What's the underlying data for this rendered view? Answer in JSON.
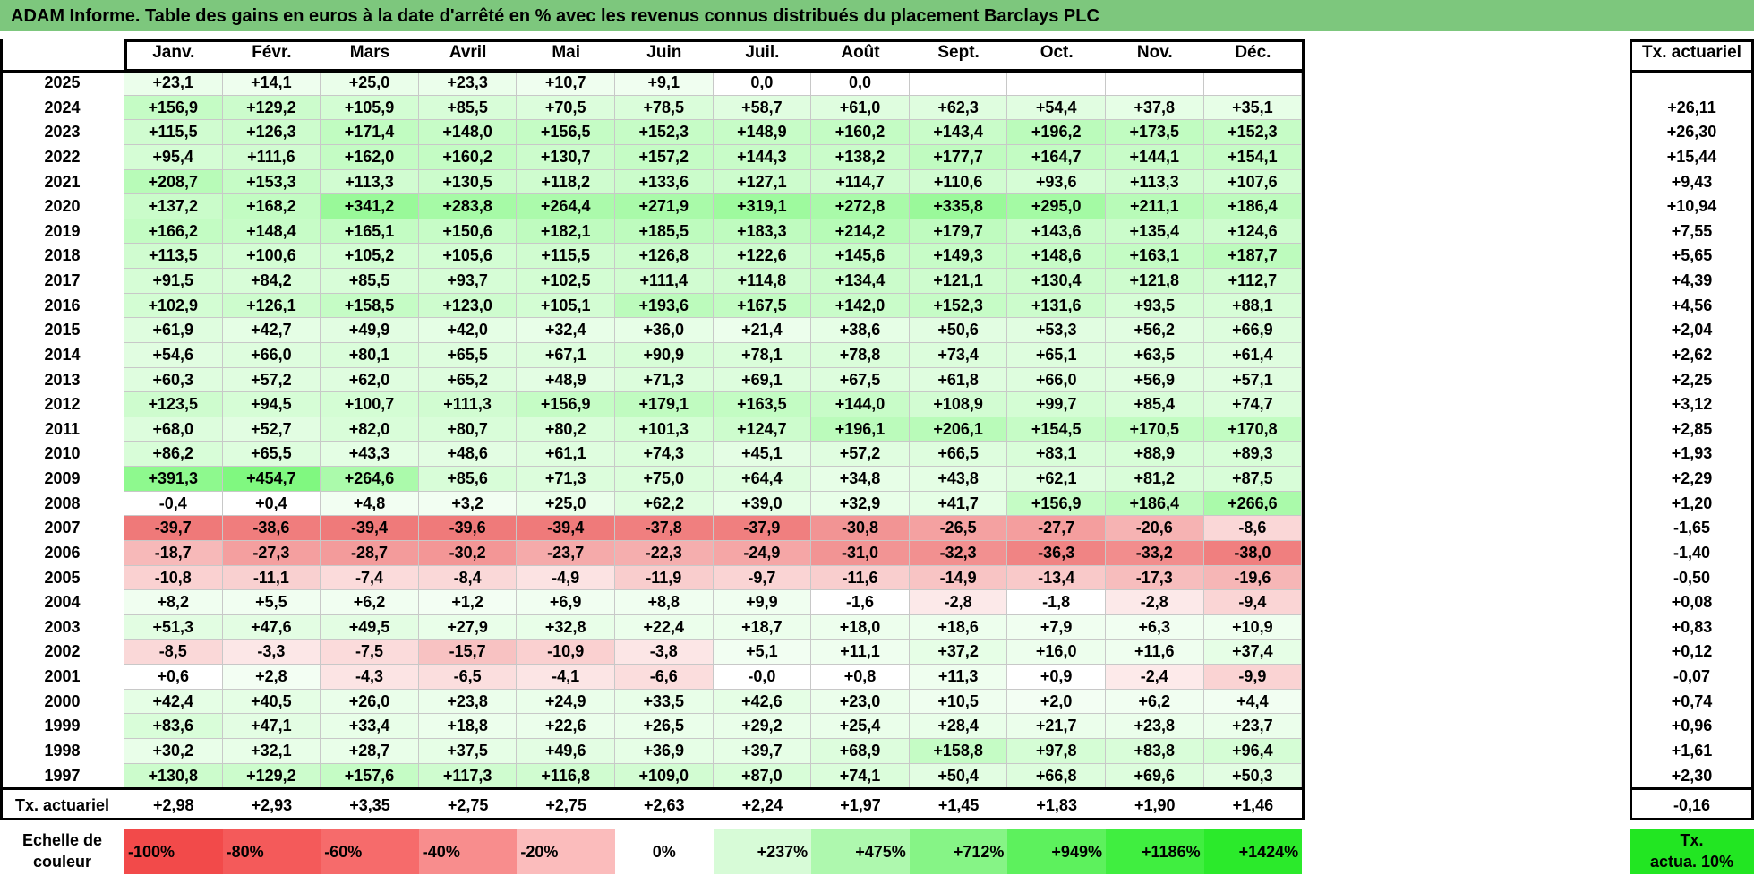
{
  "title": "ADAM Informe. Table des gains en euros à la date d'arrêté en % avec les revenus connus distribués du placement Barclays PLC",
  "months": [
    "Janv.",
    "Févr.",
    "Mars",
    "Avril",
    "Mai",
    "Juin",
    "Juil.",
    "Août",
    "Sept.",
    "Oct.",
    "Nov.",
    "Déc."
  ],
  "rate_header": "Tx. actuariel",
  "rows": [
    {
      "year": "2025",
      "values": [
        "+23,1",
        "+14,1",
        "+25,0",
        "+23,3",
        "+10,7",
        "+9,1",
        "0,0",
        "0,0",
        "",
        "",
        "",
        ""
      ],
      "rate": ""
    },
    {
      "year": "2024",
      "values": [
        "+156,9",
        "+129,2",
        "+105,9",
        "+85,5",
        "+70,5",
        "+78,5",
        "+58,7",
        "+61,0",
        "+62,3",
        "+54,4",
        "+37,8",
        "+35,1"
      ],
      "rate": "+26,11"
    },
    {
      "year": "2023",
      "values": [
        "+115,5",
        "+126,3",
        "+171,4",
        "+148,0",
        "+156,5",
        "+152,3",
        "+148,9",
        "+160,2",
        "+143,4",
        "+196,2",
        "+173,5",
        "+152,3"
      ],
      "rate": "+26,30"
    },
    {
      "year": "2022",
      "values": [
        "+95,4",
        "+111,6",
        "+162,0",
        "+160,2",
        "+130,7",
        "+157,2",
        "+144,3",
        "+138,2",
        "+177,7",
        "+164,7",
        "+144,1",
        "+154,1"
      ],
      "rate": "+15,44"
    },
    {
      "year": "2021",
      "values": [
        "+208,7",
        "+153,3",
        "+113,3",
        "+130,5",
        "+118,2",
        "+133,6",
        "+127,1",
        "+114,7",
        "+110,6",
        "+93,6",
        "+113,3",
        "+107,6"
      ],
      "rate": "+9,43"
    },
    {
      "year": "2020",
      "values": [
        "+137,2",
        "+168,2",
        "+341,2",
        "+283,8",
        "+264,4",
        "+271,9",
        "+319,1",
        "+272,8",
        "+335,8",
        "+295,0",
        "+211,1",
        "+186,4"
      ],
      "rate": "+10,94"
    },
    {
      "year": "2019",
      "values": [
        "+166,2",
        "+148,4",
        "+165,1",
        "+150,6",
        "+182,1",
        "+185,5",
        "+183,3",
        "+214,2",
        "+179,7",
        "+143,6",
        "+135,4",
        "+124,6"
      ],
      "rate": "+7,55"
    },
    {
      "year": "2018",
      "values": [
        "+113,5",
        "+100,6",
        "+105,2",
        "+105,6",
        "+115,5",
        "+126,8",
        "+122,6",
        "+145,6",
        "+149,3",
        "+148,6",
        "+163,1",
        "+187,7"
      ],
      "rate": "+5,65"
    },
    {
      "year": "2017",
      "values": [
        "+91,5",
        "+84,2",
        "+85,5",
        "+93,7",
        "+102,5",
        "+111,4",
        "+114,8",
        "+134,4",
        "+121,1",
        "+130,4",
        "+121,8",
        "+112,7"
      ],
      "rate": "+4,39"
    },
    {
      "year": "2016",
      "values": [
        "+102,9",
        "+126,1",
        "+158,5",
        "+123,0",
        "+105,1",
        "+193,6",
        "+167,5",
        "+142,0",
        "+152,3",
        "+131,6",
        "+93,5",
        "+88,1"
      ],
      "rate": "+4,56"
    },
    {
      "year": "2015",
      "values": [
        "+61,9",
        "+42,7",
        "+49,9",
        "+42,0",
        "+32,4",
        "+36,0",
        "+21,4",
        "+38,6",
        "+50,6",
        "+53,3",
        "+56,2",
        "+66,9"
      ],
      "rate": "+2,04"
    },
    {
      "year": "2014",
      "values": [
        "+54,6",
        "+66,0",
        "+80,1",
        "+65,5",
        "+67,1",
        "+90,9",
        "+78,1",
        "+78,8",
        "+73,4",
        "+65,1",
        "+63,5",
        "+61,4"
      ],
      "rate": "+2,62"
    },
    {
      "year": "2013",
      "values": [
        "+60,3",
        "+57,2",
        "+62,0",
        "+65,2",
        "+48,9",
        "+71,3",
        "+69,1",
        "+67,5",
        "+61,8",
        "+66,0",
        "+56,9",
        "+57,1"
      ],
      "rate": "+2,25"
    },
    {
      "year": "2012",
      "values": [
        "+123,5",
        "+94,5",
        "+100,7",
        "+111,3",
        "+156,9",
        "+179,1",
        "+163,5",
        "+144,0",
        "+108,9",
        "+99,7",
        "+85,4",
        "+74,7"
      ],
      "rate": "+3,12"
    },
    {
      "year": "2011",
      "values": [
        "+68,0",
        "+52,7",
        "+82,0",
        "+80,7",
        "+80,2",
        "+101,3",
        "+124,7",
        "+196,1",
        "+206,1",
        "+154,5",
        "+170,5",
        "+170,8"
      ],
      "rate": "+2,85"
    },
    {
      "year": "2010",
      "values": [
        "+86,2",
        "+65,5",
        "+43,3",
        "+48,6",
        "+61,1",
        "+74,3",
        "+45,1",
        "+57,2",
        "+66,5",
        "+83,1",
        "+88,9",
        "+89,3"
      ],
      "rate": "+1,93"
    },
    {
      "year": "2009",
      "values": [
        "+391,3",
        "+454,7",
        "+264,6",
        "+85,6",
        "+71,3",
        "+75,0",
        "+64,4",
        "+34,8",
        "+43,8",
        "+62,1",
        "+81,2",
        "+87,5"
      ],
      "rate": "+2,29"
    },
    {
      "year": "2008",
      "values": [
        "-0,4",
        "+0,4",
        "+4,8",
        "+3,2",
        "+25,0",
        "+62,2",
        "+39,0",
        "+32,9",
        "+41,7",
        "+156,9",
        "+186,4",
        "+266,6"
      ],
      "rate": "+1,20"
    },
    {
      "year": "2007",
      "values": [
        "-39,7",
        "-38,6",
        "-39,4",
        "-39,6",
        "-39,4",
        "-37,8",
        "-37,9",
        "-30,8",
        "-26,5",
        "-27,7",
        "-20,6",
        "-8,6"
      ],
      "rate": "-1,65"
    },
    {
      "year": "2006",
      "values": [
        "-18,7",
        "-27,3",
        "-28,7",
        "-30,2",
        "-23,7",
        "-22,3",
        "-24,9",
        "-31,0",
        "-32,3",
        "-36,3",
        "-33,2",
        "-38,0"
      ],
      "rate": "-1,40"
    },
    {
      "year": "2005",
      "values": [
        "-10,8",
        "-11,1",
        "-7,4",
        "-8,4",
        "-4,9",
        "-11,9",
        "-9,7",
        "-11,6",
        "-14,9",
        "-13,4",
        "-17,3",
        "-19,6"
      ],
      "rate": "-0,50"
    },
    {
      "year": "2004",
      "values": [
        "+8,2",
        "+5,5",
        "+6,2",
        "+1,2",
        "+6,9",
        "+8,8",
        "+9,9",
        "-1,6",
        "-2,8",
        "-1,8",
        "-2,8",
        "-9,4"
      ],
      "rate": "+0,08"
    },
    {
      "year": "2003",
      "values": [
        "+51,3",
        "+47,6",
        "+49,5",
        "+27,9",
        "+32,8",
        "+22,4",
        "+18,7",
        "+18,0",
        "+18,6",
        "+7,9",
        "+6,3",
        "+10,9"
      ],
      "rate": "+0,83"
    },
    {
      "year": "2002",
      "values": [
        "-8,5",
        "-3,3",
        "-7,5",
        "-15,7",
        "-10,9",
        "-3,8",
        "+5,1",
        "+11,1",
        "+37,2",
        "+16,0",
        "+11,6",
        "+37,4"
      ],
      "rate": "+0,12"
    },
    {
      "year": "2001",
      "values": [
        "+0,6",
        "+2,8",
        "-4,3",
        "-6,5",
        "-4,1",
        "-6,6",
        "-0,0",
        "+0,8",
        "+11,3",
        "+0,9",
        "-2,4",
        "-9,9"
      ],
      "rate": "-0,07"
    },
    {
      "year": "2000",
      "values": [
        "+42,4",
        "+40,5",
        "+26,0",
        "+23,8",
        "+24,9",
        "+33,5",
        "+42,6",
        "+23,0",
        "+10,5",
        "+2,0",
        "+6,2",
        "+4,4"
      ],
      "rate": "+0,74"
    },
    {
      "year": "1999",
      "values": [
        "+83,6",
        "+47,1",
        "+33,4",
        "+18,8",
        "+22,6",
        "+26,5",
        "+29,2",
        "+25,4",
        "+28,4",
        "+21,7",
        "+23,8",
        "+23,7"
      ],
      "rate": "+0,96"
    },
    {
      "year": "1998",
      "values": [
        "+30,2",
        "+32,1",
        "+28,7",
        "+37,5",
        "+49,6",
        "+36,9",
        "+39,7",
        "+68,9",
        "+158,8",
        "+97,8",
        "+83,8",
        "+96,4"
      ],
      "rate": "+1,61"
    },
    {
      "year": "1997",
      "values": [
        "+130,8",
        "+129,2",
        "+157,6",
        "+117,3",
        "+116,8",
        "+109,0",
        "+87,0",
        "+74,1",
        "+50,4",
        "+66,8",
        "+69,6",
        "+50,3"
      ],
      "rate": "+2,30"
    }
  ],
  "footer": {
    "label": "Tx. actuariel",
    "values": [
      "+2,98",
      "+2,93",
      "+3,35",
      "+2,75",
      "+2,75",
      "+2,63",
      "+2,24",
      "+1,97",
      "+1,45",
      "+1,83",
      "+1,90",
      "+1,46"
    ],
    "rate": "-0,16"
  },
  "legend": {
    "label_line1": "Echelle de",
    "label_line2": "couleur",
    "swatches": [
      {
        "text": "-100%",
        "color": "#f24a4a",
        "align": "left"
      },
      {
        "text": "-80%",
        "color": "#f45a5a",
        "align": "left"
      },
      {
        "text": "-60%",
        "color": "#f66b6b",
        "align": "left"
      },
      {
        "text": "-40%",
        "color": "#f88d8d",
        "align": "left"
      },
      {
        "text": "-20%",
        "color": "#fbbcbc",
        "align": "left"
      },
      {
        "text": "0%",
        "color": "#ffffff",
        "align": "center"
      },
      {
        "text": "+237%",
        "color": "#d7fbd7",
        "align": "right"
      },
      {
        "text": "+475%",
        "color": "#aef8ae",
        "align": "right"
      },
      {
        "text": "+712%",
        "color": "#86f486",
        "align": "right"
      },
      {
        "text": "+949%",
        "color": "#5df15d",
        "align": "right"
      },
      {
        "text": "+1186%",
        "color": "#40ee40",
        "align": "right"
      },
      {
        "text": "+1424%",
        "color": "#2bea2b",
        "align": "right"
      }
    ],
    "rate_line1": "Tx.",
    "rate_line2": "actua. 10%",
    "rate_color": "#22e622"
  }
}
